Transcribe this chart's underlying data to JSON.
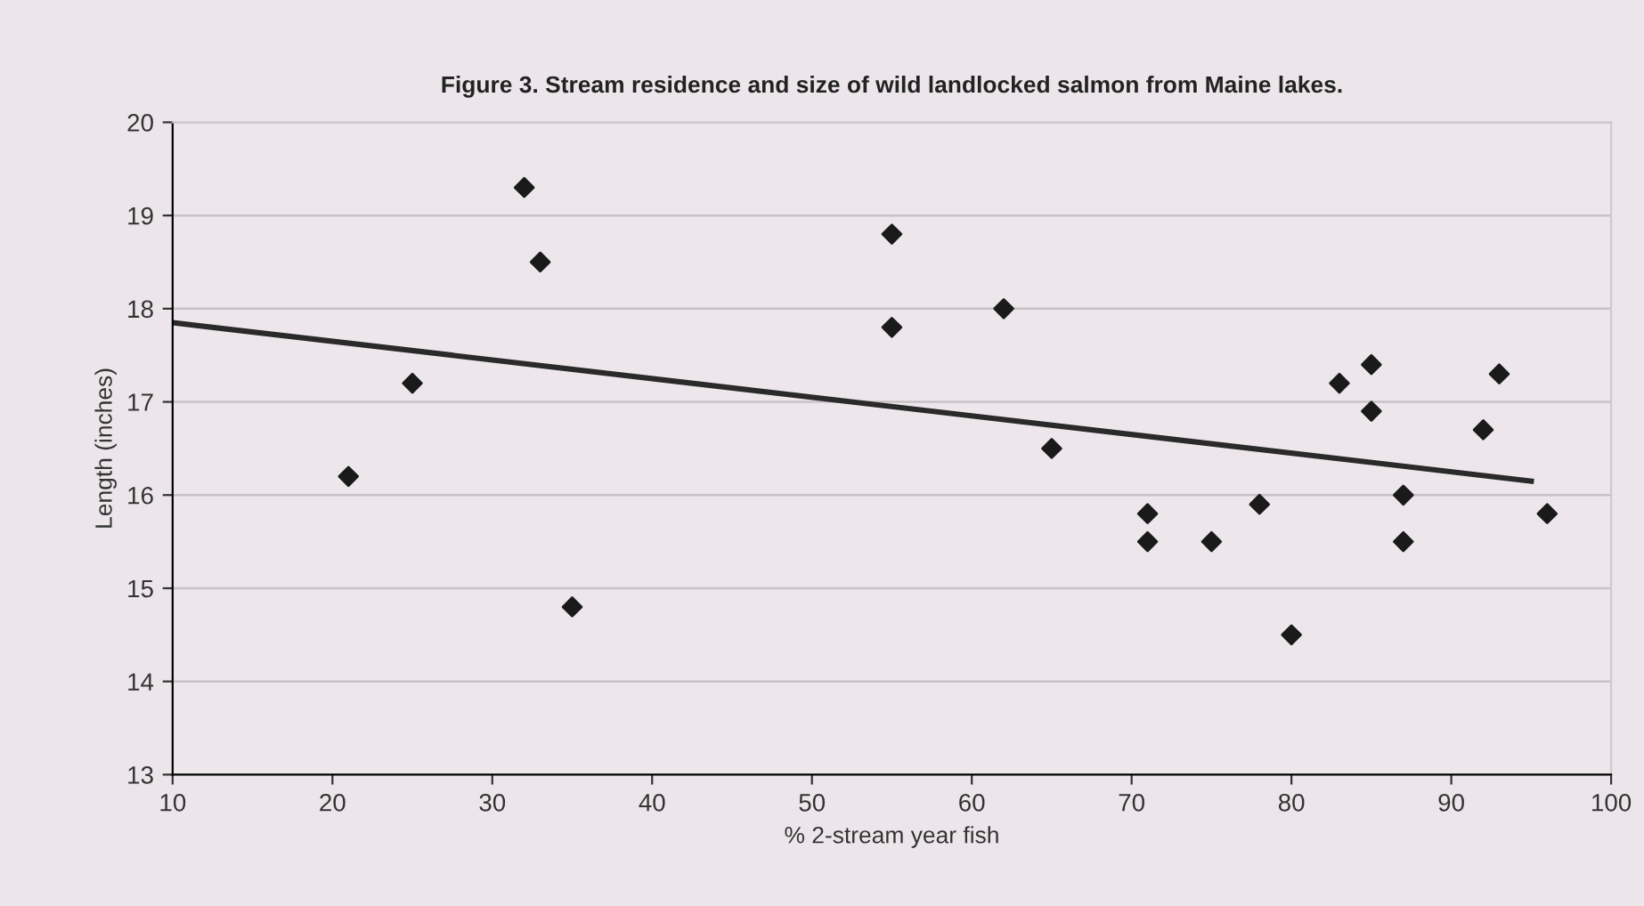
{
  "chart_data": {
    "type": "scatter",
    "title": "Figure 3. Stream residence and size of wild landlocked salmon from Maine lakes.",
    "xlabel": "% 2-stream year fish",
    "ylabel": "Length (inches)",
    "series": [
      {
        "color": "#1a1a1a",
        "marker": "diamond",
        "x": [
          21,
          25,
          32,
          33,
          35,
          55,
          55,
          62,
          65,
          71,
          71,
          75,
          78,
          80,
          83,
          85,
          85,
          87,
          87,
          92,
          93,
          96
        ],
        "values": [
          16.2,
          17.2,
          19.3,
          18.5,
          14.8,
          18.8,
          17.8,
          18.0,
          16.5,
          15.8,
          15.5,
          15.5,
          15.9,
          14.5,
          17.2,
          17.4,
          16.9,
          16.0,
          15.5,
          16.7,
          17.3,
          15.8
        ]
      },
      {
        "type": "line",
        "color": "#2a2a2a",
        "marker": "none",
        "x": [
          10,
          95
        ],
        "values": [
          17.85,
          16.15
        ]
      }
    ],
    "xlim": [
      10,
      100
    ],
    "xticks": [
      10,
      20,
      30,
      40,
      50,
      60,
      70,
      80,
      90,
      100
    ],
    "ylim": [
      13,
      20
    ],
    "yticks": [
      13,
      14,
      15,
      16,
      17,
      18,
      19,
      20
    ],
    "grid": "y"
  }
}
